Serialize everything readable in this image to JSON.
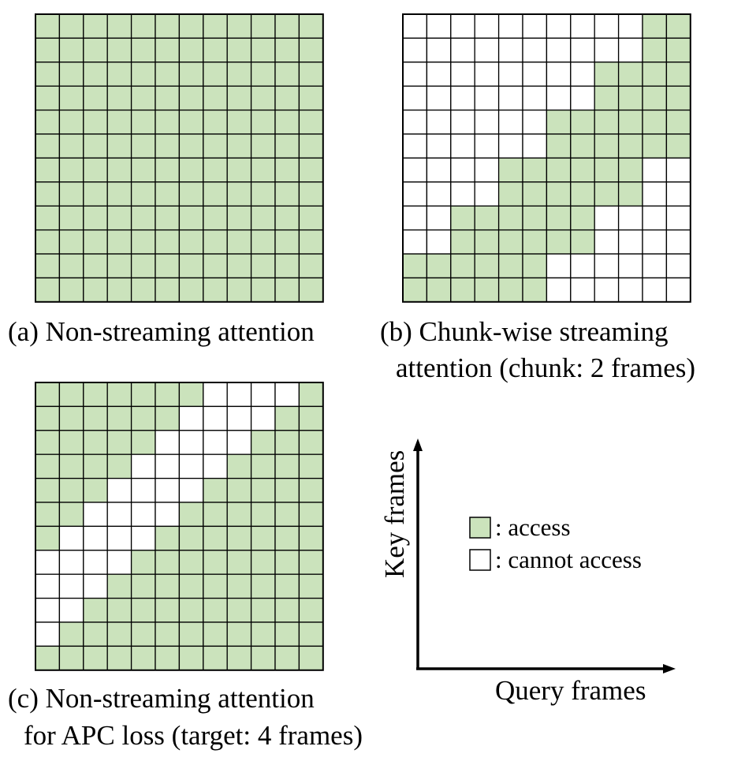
{
  "colors": {
    "access": "#cbe3bc",
    "cannot_access": "#ffffff",
    "grid_line": "#000000"
  },
  "grid_size": 12,
  "panels": [
    {
      "id": "a",
      "caption_lines": [
        "(a) Non-streaming attention"
      ],
      "matrix": [
        "111111111111",
        "111111111111",
        "111111111111",
        "111111111111",
        "111111111111",
        "111111111111",
        "111111111111",
        "111111111111",
        "111111111111",
        "111111111111",
        "111111111111",
        "111111111111"
      ]
    },
    {
      "id": "b",
      "caption_lines": [
        "(b) Chunk-wise streaming",
        "attention (chunk: 2 frames)"
      ],
      "matrix": [
        "000000000011",
        "000000000011",
        "000000001111",
        "000000001111",
        "000000111111",
        "000000111111",
        "000011111100",
        "000011111100",
        "001111110000",
        "001111110000",
        "111111000000",
        "111111000000"
      ]
    },
    {
      "id": "c",
      "caption_lines": [
        "(c) Non-streaming attention",
        "for APC loss (target: 4 frames)"
      ],
      "matrix": [
        "111111100001",
        "111111000011",
        "111110000111",
        "111100001111",
        "111000011111",
        "110000111111",
        "100001111111",
        "000011111111",
        "000111111111",
        "001111111111",
        "011111111111",
        "111111111111"
      ]
    }
  ],
  "legend": {
    "access_label": ": access",
    "cannot_access_label": ": cannot access"
  },
  "axes": {
    "y_label": "Key frames",
    "x_label": "Query frames"
  }
}
